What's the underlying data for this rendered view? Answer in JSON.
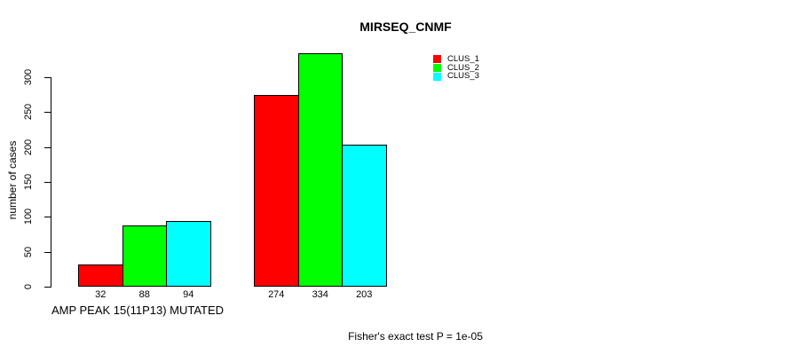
{
  "title": "MIRSEQ_CNMF",
  "chart_data": {
    "type": "bar",
    "title": "MIRSEQ_CNMF",
    "ylabel": "number of cases",
    "xlabel": "",
    "yticks": [
      0,
      50,
      100,
      150,
      200,
      250,
      300
    ],
    "ylim": [
      0,
      334
    ],
    "grid": false,
    "categories": [
      "AMP PEAK 15(11P13) MUTATED",
      ""
    ],
    "group_label": "AMP PEAK 15(11P13) MUTATED",
    "series": [
      {
        "name": "CLUS_1",
        "color": "#FF0000",
        "values": [
          32,
          274
        ]
      },
      {
        "name": "CLUS_2",
        "color": "#00FF00",
        "values": [
          88,
          334
        ]
      },
      {
        "name": "CLUS_3",
        "color": "#00FFFF",
        "values": [
          94,
          203
        ]
      }
    ],
    "bar_value_labels": [
      [
        32,
        88,
        94
      ],
      [
        274,
        334,
        203
      ]
    ],
    "bar_border_color": "#000000",
    "legend": {
      "position": "top-right",
      "entries": [
        {
          "label": "CLUS_1",
          "color": "#FF0000"
        },
        {
          "label": "CLUS_2",
          "color": "#00FF00"
        },
        {
          "label": "CLUS_3",
          "color": "#00FFFF"
        }
      ]
    },
    "annotation": "Fisher's exact test P = 1e-05"
  }
}
